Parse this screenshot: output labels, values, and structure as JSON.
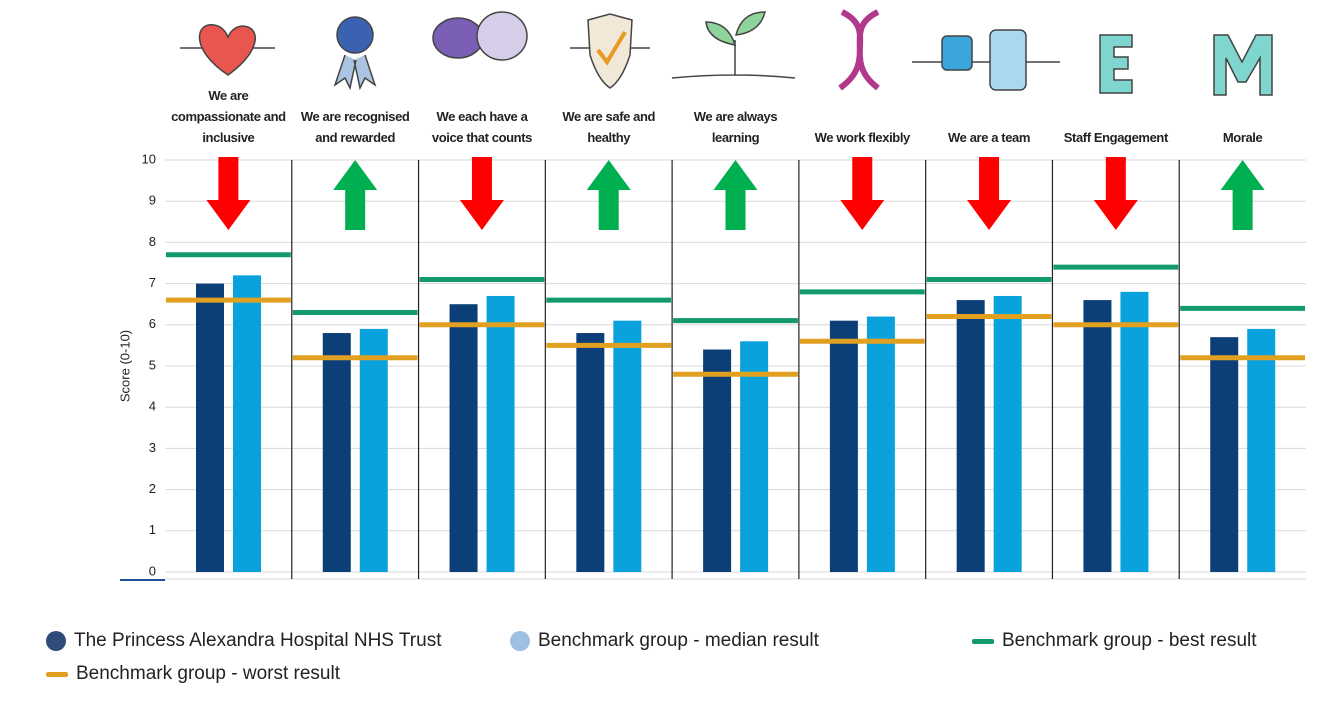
{
  "chart_data": {
    "type": "bar",
    "y_label": "Score (0-10)",
    "categories": [
      "We are compassionate and inclusive",
      "We are recognised and rewarded",
      "We each have a voice that counts",
      "We are safe and healthy",
      "We are always learning",
      "We work flexibly",
      "We are a team",
      "Staff Engagement",
      "Morale"
    ],
    "series": [
      {
        "name": "The Princess Alexandra Hospital NHS Trust",
        "color": "#0c3f78",
        "style": "bar",
        "values": [
          7.0,
          5.8,
          6.5,
          5.8,
          5.4,
          6.1,
          6.6,
          6.6,
          5.7
        ]
      },
      {
        "name": "Benchmark group - median result",
        "color": "#0aa2dd",
        "style": "bar",
        "values": [
          7.2,
          5.9,
          6.7,
          6.1,
          5.6,
          6.2,
          6.7,
          6.8,
          5.9
        ]
      },
      {
        "name": "Benchmark group - best result",
        "color": "#129a6c",
        "style": "line",
        "values": [
          7.7,
          6.3,
          7.1,
          6.6,
          6.1,
          6.8,
          7.1,
          7.4,
          6.4
        ]
      },
      {
        "name": "Benchmark group - worst result",
        "color": "#e2a020",
        "style": "line",
        "values": [
          6.6,
          5.2,
          6.0,
          5.5,
          4.8,
          5.6,
          6.2,
          6.0,
          5.2
        ]
      }
    ],
    "arrows": [
      "down",
      "up",
      "down",
      "up",
      "up",
      "down",
      "down",
      "down",
      "up"
    ],
    "arrow_colors": {
      "up": "#00b050",
      "down": "#ff0000"
    },
    "legend_marker_colors": [
      "#2e4b7a",
      "#9dc0e3",
      "#129a6c",
      "#e2a020"
    ],
    "ylim": [
      0,
      10
    ],
    "yticks": [
      0,
      1,
      2,
      3,
      4,
      5,
      6,
      7,
      8,
      9,
      10
    ],
    "grid": true
  }
}
